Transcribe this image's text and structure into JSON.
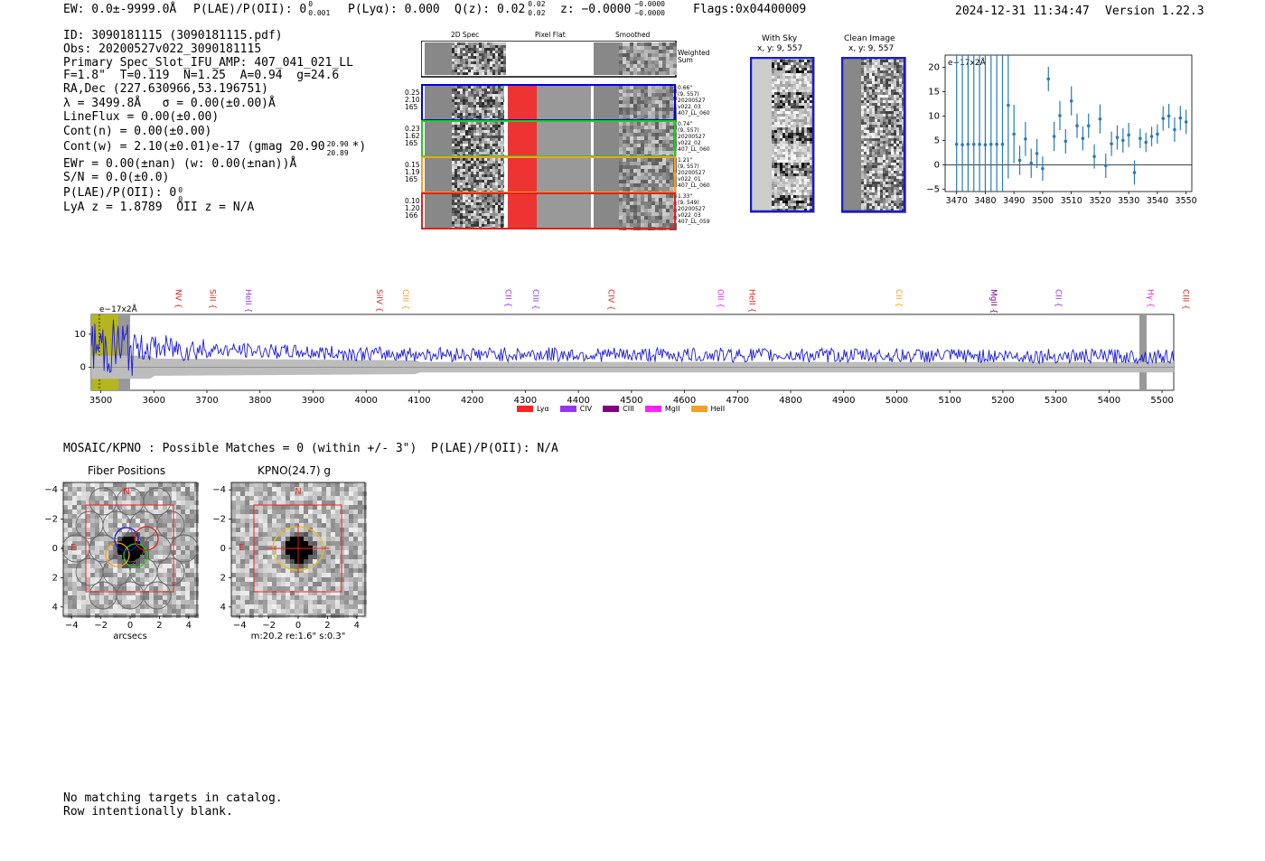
{
  "header": {
    "ew": "EW: 0.0±-9999.0Å",
    "plae": "P(LAE)/P(OII): 0",
    "plae_sup": "0",
    "plae_sub": "0.001",
    "plya": "P(Lyα): 0.000",
    "qz": "Q(z): 0.02",
    "qz_sup": "0.02",
    "qz_sub": "0.02",
    "z": "z: −0.0000",
    "z_sup": "−0.0000",
    "z_sub": "−0.0000",
    "flags": "Flags:0x04400009",
    "timestamp": "2024-12-31 11:34:47",
    "version": "Version 1.22.3"
  },
  "info": {
    "id": "ID: 3090181115 (3090181115.pdf)",
    "obs": "Obs: 20200527v022_3090181115",
    "primary": "Primary Spec_Slot_IFU_AMP: 407_041_021_LL",
    "params": "F=1.8\"  T=0.119  N=1.25  A=0.94  g=24.6",
    "radec": "RA,Dec (227.630966,53.196751)",
    "lambda": "λ = 3499.8Å   σ = 0.00(±0.00)Å",
    "lineflux": "LineFlux = 0.00(±0.00)",
    "contn": "Cont(n) = 0.00(±0.00)",
    "contw": "Cont(w) = 2.10(±0.01)e-17 (gmag 20.90",
    "contw_sup": "20.90",
    "contw_sub": "20.89",
    "contw_end": "*)",
    "ewr": "EWr = 0.00(±nan) (w: 0.00(±nan))Å",
    "sn": "S/N = 0.0(±0.0)",
    "plae2": "P(LAE)/P(OII): 0",
    "plae2_sup": "0",
    "plae2_sub": "0",
    "lya": "LyA z = 1.8789  OII z = N/A"
  },
  "cutouts": {
    "col_2d": "2D Spec",
    "col_flat": "Pixel Flat",
    "col_smooth": "Smoothed",
    "weighted": "Weighted\nSum",
    "rows": [
      {
        "left": "0.25\n2.10\n165",
        "right": "0.66\"\n(9, 557)\n20200527\nv022_03\n407_LL_060",
        "color": "#0000dd"
      },
      {
        "left": "0.23\n1.62\n165",
        "right": "0.74\"\n(9, 557)\n20200527\nv022_02\n407_LL_060",
        "color": "#22cc22"
      },
      {
        "left": "0.15\n1.19\n165",
        "right": "1.21\"\n(9, 557)\n20200527\nv022_01\n407_LL_060",
        "color": "#f5a020"
      },
      {
        "left": "0.10\n1.20\n166",
        "right": "1.33\"\n(9, 549)\n20200527\nv022_03\n407_LL_059",
        "color": "#dd2222"
      }
    ]
  },
  "sky": {
    "with_title": "With Sky",
    "with_xy": "x, y: 9, 557",
    "clean_title": "Clean Image",
    "clean_xy": "x, y: 9, 557"
  },
  "zoom_chart": {
    "unit": "e−17x2Å",
    "xticks": [
      "3470",
      "3480",
      "3490",
      "3500",
      "3510",
      "3520",
      "3530",
      "3540",
      "3550"
    ],
    "yticks": [
      "20",
      "15",
      "10",
      "5",
      "0",
      "−5"
    ]
  },
  "spectrum": {
    "unit": "e−17x2Å",
    "yticks": [
      "10",
      "0"
    ],
    "xticks": [
      "3500",
      "3600",
      "3700",
      "3800",
      "3900",
      "4000",
      "4100",
      "4200",
      "4300",
      "4400",
      "4500",
      "4600",
      "4700",
      "4800",
      "4900",
      "5000",
      "5100",
      "5200",
      "5300",
      "5400",
      "5500"
    ],
    "lines": [
      {
        "name": "NV",
        "wave": 3646,
        "color": "#dd2222"
      },
      {
        "name": "SiII",
        "wave": 3711,
        "color": "#dd2222"
      },
      {
        "name": "HeII",
        "wave": 3778,
        "color": "#9933ee"
      },
      {
        "name": "SiIV",
        "wave": 4025,
        "color": "#dd2222"
      },
      {
        "name": "CIII",
        "wave": 4075,
        "color": "#f5a020"
      },
      {
        "name": "CII",
        "wave": 4268,
        "color": "#9933ee"
      },
      {
        "name": "CIII",
        "wave": 4320,
        "color": "#9933ee"
      },
      {
        "name": "CIV",
        "wave": 4462,
        "color": "#dd2222"
      },
      {
        "name": "OII",
        "wave": 4668,
        "color": "#ee22ee"
      },
      {
        "name": "HeII",
        "wave": 4728,
        "color": "#dd2222"
      },
      {
        "name": "CII",
        "wave": 5004,
        "color": "#f5a020"
      },
      {
        "name": "MgII",
        "wave": 5183,
        "color": "#800080"
      },
      {
        "name": "CII",
        "wave": 5305,
        "color": "#9933ee"
      },
      {
        "name": "Hγ",
        "wave": 5479,
        "color": "#ee22ee"
      },
      {
        "name": "CIII",
        "wave": 5545,
        "color": "#dd2222"
      }
    ],
    "legend": [
      {
        "label": "Lyα",
        "color": "#ff2222"
      },
      {
        "label": "CIV",
        "color": "#9933ee"
      },
      {
        "label": "CIII",
        "color": "#800080"
      },
      {
        "label": "MgII",
        "color": "#ff22ff"
      },
      {
        "label": "HeII",
        "color": "#f5a020"
      }
    ]
  },
  "mosaic": {
    "title": "MOSAIC/KPNO : Possible Matches = 0 (within +/- 3\")  P(LAE)/P(OII): N/A",
    "fiber_title": "Fiber Positions",
    "kpno_title": "KPNO(24.7) g",
    "xlabel": "arcsecs",
    "kpno_caption": "m:20.2  re:1.6\"  s:0.3\"",
    "ticks": [
      "−4",
      "−2",
      "0",
      "2",
      "4"
    ],
    "yticks": [
      "4",
      "2",
      "0",
      "−2",
      "−4"
    ],
    "north": "N",
    "east": "E"
  },
  "footer": {
    "line1": "No matching targets in catalog.",
    "line2": "Row intentionally blank."
  }
}
